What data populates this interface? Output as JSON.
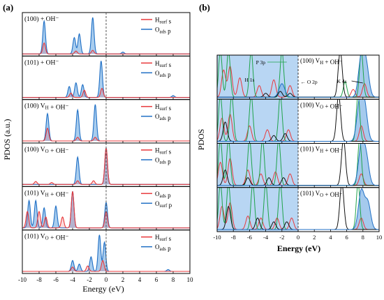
{
  "panel_a": {
    "label": "(a)",
    "ylabel": "PDOS (a.u.)",
    "xlabel": "Energy (eV)",
    "x_ticks": [
      "-10",
      "-8",
      "-6",
      "-4",
      "-2",
      "0",
      "2",
      "4",
      "6",
      "8",
      "10"
    ],
    "subplots": [
      {
        "label": "(100) + OH⁻",
        "legend": [
          "H_surf s",
          "O_ads p"
        ]
      },
      {
        "label": "(101) + OH⁻",
        "legend": [
          "H_surf s",
          "O_ads p"
        ]
      },
      {
        "label": "(100) V_H + OH⁻",
        "legend": [
          "H_surf s",
          "O_ads p"
        ]
      },
      {
        "label": "(100) V_O + OH⁻",
        "legend": [
          "H_surf s",
          "O_ads p"
        ]
      },
      {
        "label": "(101) V_H + OH⁻",
        "legend": [
          "O_ads p",
          "O_surf p"
        ]
      },
      {
        "label": "(101) V_O + OH⁻",
        "legend": [
          "H_surf s",
          "O_ads p"
        ]
      }
    ]
  },
  "panel_b": {
    "label": "(b)",
    "ylabel": "PDOS",
    "xlabel": "Energy (eV)",
    "x_ticks": [
      "-10",
      "-8",
      "-6",
      "-4",
      "-2",
      "0",
      "2",
      "4",
      "6",
      "8",
      "10"
    ],
    "annotations": [
      "P 3p",
      "H 1s",
      "O 2p",
      "K 4s"
    ],
    "subplots": [
      {
        "label": "(100) V_H + OH⁻"
      },
      {
        "label": "(100) V_O + OH⁻"
      },
      {
        "label": "(101) V_H + OH⁻"
      },
      {
        "label": "(101) V_O + OH⁻"
      }
    ]
  },
  "colors": {
    "red": "#e8393b",
    "blue": "#1f6fc5",
    "fill": "#a9cdee",
    "green": "#1fa34a",
    "black": "#111111",
    "panel_b_fill": "#b8d6f3"
  },
  "chart_data": [
    {
      "type": "area",
      "title": "(a)",
      "xlabel": "Energy (eV)",
      "ylabel": "PDOS (a.u.)",
      "xlim": [
        -10,
        10
      ],
      "subplots": [
        {
          "label": "(100) + OH⁻",
          "series": [
            {
              "name": "H_surf s",
              "color": "red",
              "peaks": [
                [
                  -7.4,
                  0.3
                ],
                [
                  -3.6,
                  0.08
                ],
                [
                  -1.6,
                  0.1
                ]
              ]
            },
            {
              "name": "O_ads p",
              "color": "blue",
              "peaks": [
                [
                  -7.4,
                  0.9
                ],
                [
                  -3.8,
                  0.45
                ],
                [
                  -3.2,
                  0.55
                ],
                [
                  -1.6,
                  1.0
                ],
                [
                  2.0,
                  0.05
                ]
              ]
            }
          ]
        },
        {
          "label": "(101) + OH⁻",
          "series": [
            {
              "name": "H_surf s",
              "color": "red",
              "peaks": [
                [
                  -4.2,
                  0.12
                ],
                [
                  -2.6,
                  0.2
                ],
                [
                  -0.5,
                  0.25
                ]
              ]
            },
            {
              "name": "O_ads p",
              "color": "blue",
              "peaks": [
                [
                  -4.4,
                  0.3
                ],
                [
                  -3.6,
                  0.4
                ],
                [
                  -2.8,
                  0.35
                ],
                [
                  -0.6,
                  1.0
                ],
                [
                  8.0,
                  0.05
                ]
              ]
            }
          ]
        },
        {
          "label": "(100) V_H + OH⁻",
          "series": [
            {
              "name": "H_surf s",
              "color": "red",
              "peaks": [
                [
                  -7.0,
                  0.35
                ],
                [
                  -3.4,
                  0.1
                ],
                [
                  -1.3,
                  0.1
                ]
              ]
            },
            {
              "name": "O_ads p",
              "color": "blue",
              "peaks": [
                [
                  -7.0,
                  0.75
                ],
                [
                  -3.4,
                  0.85
                ],
                [
                  -1.3,
                  1.0
                ]
              ]
            }
          ]
        },
        {
          "label": "(100) V_O + OH⁻",
          "series": [
            {
              "name": "H_surf s",
              "color": "red",
              "peaks": [
                [
                  -8.4,
                  0.08
                ],
                [
                  -6.5,
                  0.05
                ],
                [
                  -3.4,
                  0.1
                ],
                [
                  -1.5,
                  0.1
                ],
                [
                  0.0,
                  1.0
                ]
              ]
            },
            {
              "name": "O_ads p",
              "color": "blue",
              "peaks": [
                [
                  -3.4,
                  0.75
                ],
                [
                  0.0,
                  1.0
                ]
              ]
            }
          ]
        },
        {
          "label": "(101) V_H + OH⁻",
          "series": [
            {
              "name": "O_ads p",
              "color": "red",
              "peaks": [
                [
                  -9.4,
                  0.45
                ],
                [
                  -8.0,
                  0.45
                ],
                [
                  -7.2,
                  0.3
                ],
                [
                  -5.2,
                  0.3
                ],
                [
                  -4.0,
                  1.0
                ],
                [
                  0.0,
                  0.45
                ]
              ]
            },
            {
              "name": "O_surf p",
              "color": "blue",
              "peaks": [
                [
                  -9.2,
                  0.75
                ],
                [
                  -8.4,
                  0.75
                ],
                [
                  -7.4,
                  0.55
                ],
                [
                  -6.0,
                  0.6
                ],
                [
                  -4.0,
                  1.0
                ],
                [
                  0.0,
                  0.7
                ]
              ]
            }
          ]
        },
        {
          "label": "(101) V_O + OH⁻",
          "series": [
            {
              "name": "H_surf s",
              "color": "red",
              "peaks": [
                [
                  -4.0,
                  0.12
                ],
                [
                  -2.2,
                  0.15
                ],
                [
                  -0.4,
                  0.3
                ]
              ]
            },
            {
              "name": "O_ads p",
              "color": "blue",
              "peaks": [
                [
                  -4.0,
                  0.3
                ],
                [
                  -3.2,
                  0.2
                ],
                [
                  -1.8,
                  0.4
                ],
                [
                  -0.8,
                  1.0
                ],
                [
                  -0.2,
                  0.8
                ],
                [
                  7.4,
                  0.05
                ]
              ]
            }
          ]
        }
      ]
    },
    {
      "type": "line",
      "title": "(b)",
      "xlabel": "Energy (eV)",
      "ylabel": "PDOS",
      "xlim": [
        -10,
        10
      ],
      "shaded_region": [
        -10,
        0
      ],
      "annotations": [
        "P 3p",
        "H 1s",
        "O 2p",
        "K 4s"
      ],
      "subplots": [
        {
          "label": "(100) V_H + OH⁻",
          "series": [
            {
              "color": "red",
              "peaks": [
                [
                  -9.2,
                  0.7
                ],
                [
                  -8.4,
                  0.8
                ],
                [
                  -7.2,
                  0.5
                ],
                [
                  -4.8,
                  0.3
                ],
                [
                  -3.0,
                  0.45
                ],
                [
                  -1.0,
                  0.3
                ],
                [
                  6.8,
                  0.2
                ],
                [
                  8.2,
                  0.35
                ]
              ]
            },
            {
              "color": "green",
              "peaks": [
                [
                  -9.6,
                  1.2
                ],
                [
                  -8.6,
                  1.2
                ],
                [
                  -5.8,
                  1.2
                ],
                [
                  -2.0,
                  1.2
                ],
                [
                  5.8,
                  0.4
                ],
                [
                  7.8,
                  1.2
                ]
              ]
            },
            {
              "color": "black",
              "peaks": [
                [
                  -4.0,
                  0.1
                ],
                [
                  -2.2,
                  0.15
                ],
                [
                  -1.0,
                  0.1
                ],
                [
                  5.2,
                  1.2
                ]
              ]
            },
            {
              "color": "blue",
              "peaks": [
                [
                  -2.0,
                  0.35
                ],
                [
                  7.8,
                  1.0
                ],
                [
                  8.4,
                  0.8
                ]
              ]
            }
          ]
        },
        {
          "label": "(100) V_O + OH⁻",
          "series": [
            {
              "color": "red",
              "peaks": [
                [
                  -9.4,
                  0.6
                ],
                [
                  -8.4,
                  0.7
                ],
                [
                  -6.0,
                  0.4
                ],
                [
                  -3.8,
                  0.3
                ],
                [
                  -1.2,
                  0.3
                ],
                [
                  7.8,
                  0.4
                ]
              ]
            },
            {
              "color": "green",
              "peaks": [
                [
                  -9.6,
                  1.2
                ],
                [
                  -8.2,
                  1.2
                ],
                [
                  -5.8,
                  1.2
                ],
                [
                  -2.2,
                  1.2
                ],
                [
                  7.4,
                  1.2
                ]
              ]
            },
            {
              "color": "black",
              "peaks": [
                [
                  -9.0,
                  0.5
                ],
                [
                  -3.0,
                  0.15
                ],
                [
                  -1.6,
                  0.2
                ],
                [
                  5.0,
                  1.2
                ]
              ]
            },
            {
              "color": "blue",
              "peaks": [
                [
                  7.6,
                  1.0
                ],
                [
                  8.2,
                  0.9
                ]
              ]
            }
          ]
        },
        {
          "label": "(101) V_H + OH⁻",
          "series": [
            {
              "color": "red",
              "peaks": [
                [
                  -9.6,
                  0.6
                ],
                [
                  -8.4,
                  0.7
                ],
                [
                  -6.2,
                  0.4
                ],
                [
                  -4.6,
                  0.3
                ],
                [
                  -2.8,
                  0.35
                ],
                [
                  -1.0,
                  0.3
                ],
                [
                  7.8,
                  0.3
                ]
              ]
            },
            {
              "color": "green",
              "peaks": [
                [
                  -9.6,
                  1.2
                ],
                [
                  -8.6,
                  1.2
                ],
                [
                  -6.0,
                  1.2
                ],
                [
                  -4.4,
                  1.2
                ],
                [
                  -2.4,
                  1.2
                ],
                [
                  7.6,
                  1.2
                ]
              ]
            },
            {
              "color": "black",
              "peaks": [
                [
                  -9.0,
                  0.4
                ],
                [
                  -6.2,
                  0.2
                ],
                [
                  -3.6,
                  0.2
                ],
                [
                  -1.8,
                  0.2
                ],
                [
                  5.6,
                  1.2
                ]
              ]
            },
            {
              "color": "blue",
              "peaks": [
                [
                  7.8,
                  1.0
                ],
                [
                  8.4,
                  0.7
                ]
              ]
            }
          ]
        },
        {
          "label": "(101) V_O + OH⁻",
          "series": [
            {
              "color": "red",
              "peaks": [
                [
                  -9.4,
                  0.6
                ],
                [
                  -8.4,
                  0.7
                ],
                [
                  -6.2,
                  0.35
                ],
                [
                  -4.6,
                  0.3
                ],
                [
                  -2.6,
                  0.3
                ],
                [
                  -0.8,
                  0.3
                ],
                [
                  7.8,
                  0.3
                ]
              ]
            },
            {
              "color": "green",
              "peaks": [
                [
                  -9.6,
                  1.2
                ],
                [
                  -8.6,
                  1.2
                ],
                [
                  -5.6,
                  1.2
                ],
                [
                  -4.0,
                  1.2
                ],
                [
                  -2.2,
                  1.2
                ],
                [
                  7.4,
                  1.2
                ]
              ]
            },
            {
              "color": "black",
              "peaks": [
                [
                  -8.6,
                  0.6
                ],
                [
                  -5.0,
                  0.3
                ],
                [
                  -3.0,
                  0.2
                ],
                [
                  -1.4,
                  0.2
                ],
                [
                  5.4,
                  1.2
                ]
              ]
            },
            {
              "color": "blue",
              "peaks": [
                [
                  7.8,
                  1.0
                ],
                [
                  8.6,
                  0.7
                ]
              ]
            }
          ]
        }
      ]
    }
  ]
}
